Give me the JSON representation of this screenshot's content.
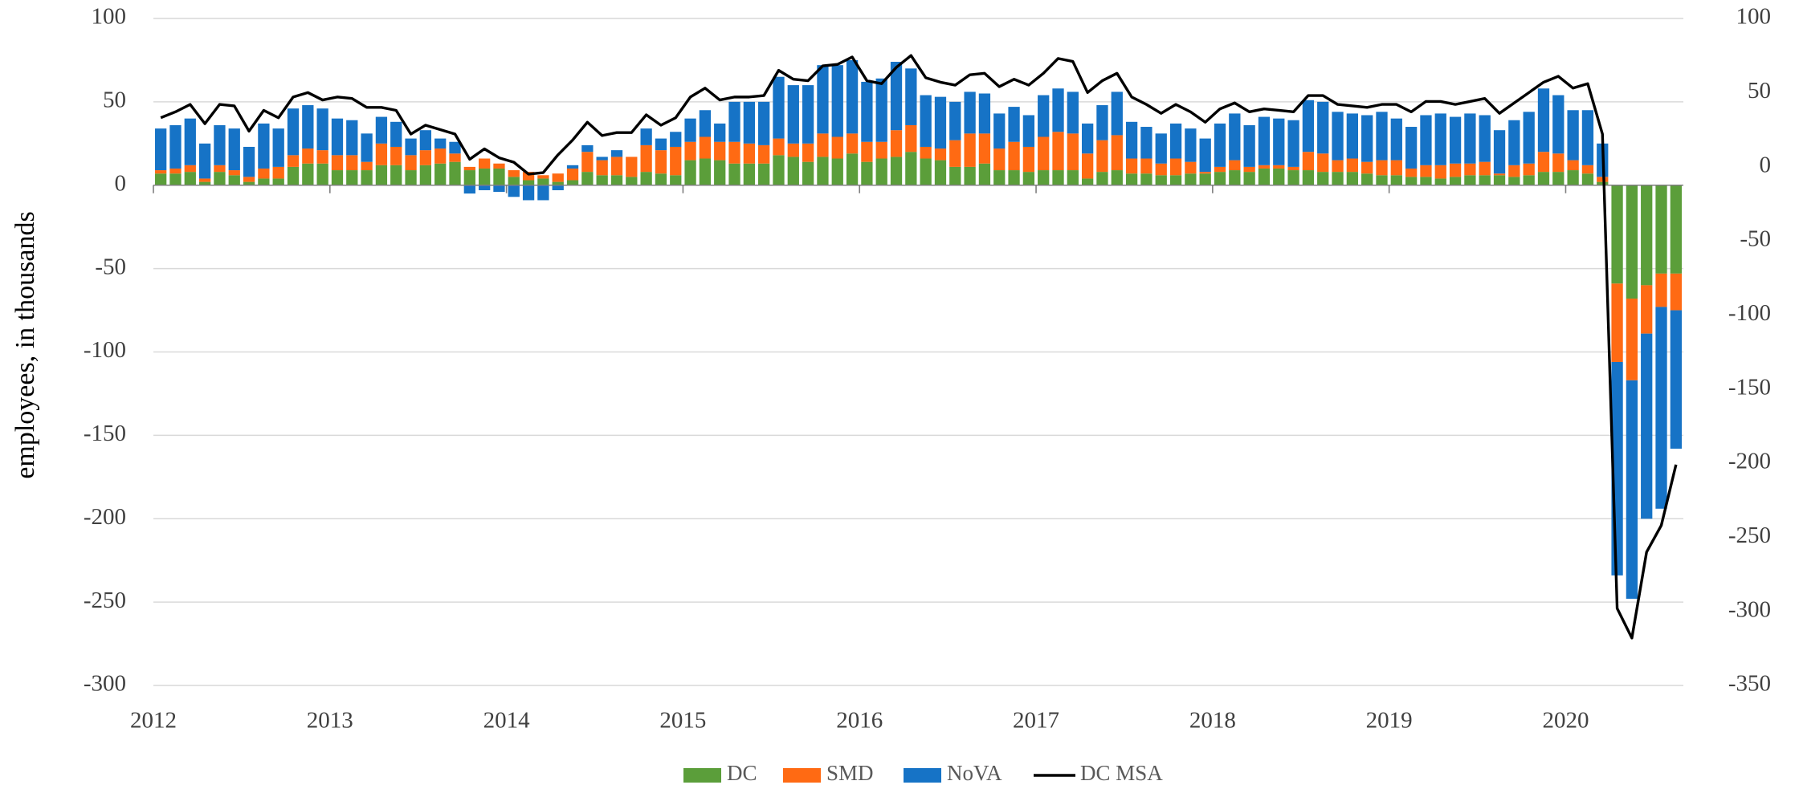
{
  "chart_data": {
    "type": "bar",
    "stacked": true,
    "ylabel": "employees, in thousands",
    "categories": [
      "2012",
      null,
      null,
      null,
      null,
      null,
      null,
      null,
      null,
      null,
      null,
      null,
      "2013",
      null,
      null,
      null,
      null,
      null,
      null,
      null,
      null,
      null,
      null,
      null,
      "2014",
      null,
      null,
      null,
      null,
      null,
      null,
      null,
      null,
      null,
      null,
      null,
      "2015",
      null,
      null,
      null,
      null,
      null,
      null,
      null,
      null,
      null,
      null,
      null,
      "2016",
      null,
      null,
      null,
      null,
      null,
      null,
      null,
      null,
      null,
      null,
      null,
      "2017",
      null,
      null,
      null,
      null,
      null,
      null,
      null,
      null,
      null,
      null,
      null,
      "2018",
      null,
      null,
      null,
      null,
      null,
      null,
      null,
      null,
      null,
      null,
      null,
      "2019",
      null,
      null,
      null,
      null,
      null,
      null,
      null,
      null,
      null,
      null,
      null,
      "2020",
      null,
      null,
      null,
      null,
      null,
      null,
      null
    ],
    "series": [
      {
        "name": "DC",
        "color": "#5b9e3a",
        "values": [
          7,
          7,
          8,
          2,
          8,
          6,
          2,
          4,
          4,
          11,
          13,
          13,
          9,
          9,
          9,
          12,
          12,
          9,
          12,
          13,
          14,
          9,
          10,
          10,
          5,
          3,
          4,
          2,
          3,
          8,
          6,
          6,
          5,
          8,
          7,
          6,
          15,
          16,
          15,
          13,
          13,
          13,
          18,
          17,
          14,
          17,
          16,
          19,
          14,
          16,
          17,
          20,
          16,
          15,
          11,
          11,
          13,
          9,
          9,
          8,
          9,
          9,
          9,
          4,
          8,
          9,
          7,
          7,
          6,
          6,
          7,
          7,
          8,
          9,
          8,
          10,
          10,
          9,
          9,
          8,
          8,
          8,
          7,
          6,
          6,
          5,
          5,
          4,
          5,
          6,
          6,
          6,
          5,
          6,
          8,
          8,
          9,
          7,
          2,
          -59,
          -68,
          -60,
          -53,
          -53
        ]
      },
      {
        "name": "SMD",
        "color": "#ff6a13",
        "values": [
          2,
          3,
          4,
          2,
          4,
          3,
          3,
          6,
          7,
          7,
          9,
          8,
          9,
          9,
          5,
          13,
          11,
          9,
          9,
          9,
          5,
          2,
          6,
          3,
          4,
          5,
          2,
          5,
          7,
          12,
          9,
          11,
          12,
          16,
          14,
          17,
          11,
          13,
          11,
          13,
          12,
          11,
          10,
          8,
          11,
          14,
          13,
          12,
          12,
          10,
          16,
          16,
          7,
          7,
          16,
          20,
          18,
          13,
          17,
          15,
          20,
          23,
          22,
          15,
          19,
          21,
          9,
          9,
          7,
          10,
          7,
          1,
          3,
          6,
          3,
          2,
          2,
          2,
          11,
          11,
          7,
          8,
          7,
          9,
          9,
          5,
          7,
          8,
          8,
          7,
          8,
          1,
          7,
          7,
          12,
          11,
          6,
          5,
          3,
          -47,
          -49,
          -29,
          -20,
          -22
        ]
      },
      {
        "name": "NoVA",
        "color": "#1673c6",
        "values": [
          25,
          26,
          28,
          21,
          24,
          25,
          18,
          27,
          23,
          28,
          26,
          25,
          22,
          21,
          17,
          16,
          15,
          10,
          12,
          6,
          7,
          -5,
          -3,
          -4,
          -7,
          -9,
          -9,
          -3,
          2,
          4,
          2,
          4,
          0,
          10,
          7,
          9,
          14,
          16,
          11,
          24,
          25,
          26,
          37,
          35,
          35,
          41,
          43,
          44,
          36,
          38,
          41,
          34,
          31,
          31,
          23,
          25,
          24,
          21,
          21,
          19,
          25,
          26,
          25,
          18,
          21,
          26,
          22,
          19,
          18,
          21,
          20,
          20,
          26,
          28,
          25,
          29,
          28,
          28,
          31,
          31,
          29,
          27,
          28,
          29,
          25,
          25,
          30,
          31,
          28,
          30,
          28,
          26,
          27,
          31,
          38,
          35,
          30,
          33,
          20,
          -128,
          -131,
          -111,
          -121,
          -83
        ]
      },
      {
        "name": "DC MSA",
        "type": "line",
        "axis": "y2",
        "color": "#000000",
        "values": [
          33,
          37,
          42,
          29,
          42,
          41,
          24,
          38,
          33,
          47,
          50,
          45,
          47,
          46,
          40,
          40,
          38,
          22,
          28,
          25,
          22,
          5,
          12,
          6,
          3,
          -5,
          -4,
          8,
          18,
          30,
          21,
          23,
          23,
          35,
          28,
          33,
          47,
          53,
          45,
          47,
          47,
          48,
          65,
          59,
          58,
          68,
          69,
          74,
          58,
          56,
          67,
          75,
          60,
          57,
          55,
          62,
          63,
          54,
          59,
          55,
          63,
          73,
          71,
          50,
          58,
          63,
          47,
          42,
          36,
          42,
          37,
          30,
          39,
          43,
          37,
          39,
          38,
          37,
          48,
          48,
          42,
          41,
          40,
          42,
          42,
          37,
          44,
          44,
          42,
          44,
          46,
          36,
          43,
          50,
          57,
          61,
          53,
          56,
          22,
          -298,
          -318,
          -260,
          -242,
          -201
        ]
      }
    ],
    "ylim": [
      -300,
      100
    ],
    "yticks": [
      -300,
      -250,
      -200,
      -150,
      -100,
      -50,
      0,
      50,
      100
    ],
    "y2lim": [
      -350,
      100
    ],
    "y2ticks": [
      -350,
      -300,
      -250,
      -200,
      -150,
      -100,
      -50,
      0,
      50,
      100
    ],
    "grid": true,
    "legend": "bottom"
  }
}
